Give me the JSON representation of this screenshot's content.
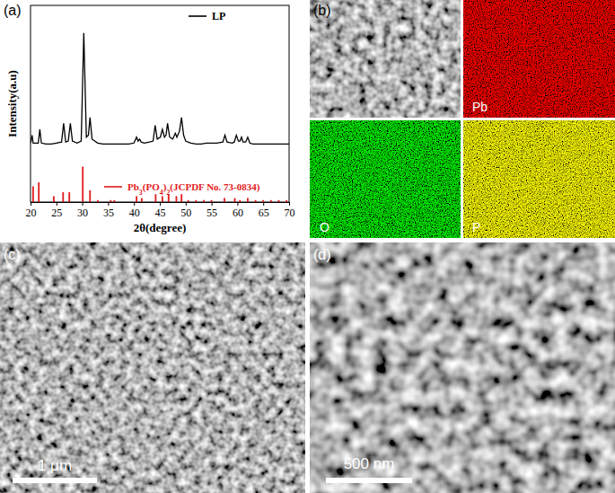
{
  "chart_data": {
    "type": "line",
    "x_label": "2θ(degree)",
    "y_label": "Intensity(a.u)",
    "xlim": [
      20,
      70
    ],
    "xticks": [
      20,
      25,
      30,
      35,
      40,
      45,
      50,
      55,
      60,
      65,
      70
    ],
    "ylim": [
      0,
      100
    ],
    "tick_labels": "x",
    "legend": "right",
    "series": [
      {
        "name": "LP",
        "color": "#000000",
        "type": "line",
        "x": [
          20,
          20.1,
          20.3,
          20.5,
          21.5,
          21.8,
          22.1,
          23,
          24,
          25,
          26,
          26.4,
          26.8,
          27.3,
          27.7,
          28.1,
          29,
          29.8,
          30.3,
          30.8,
          31.2,
          31.5,
          31.9,
          33,
          34,
          35,
          36,
          37,
          38,
          39,
          40,
          40.5,
          40.8,
          41.1,
          41.4,
          42,
          43,
          43.7,
          44.1,
          44.5,
          45.1,
          45.5,
          45.9,
          46.2,
          46.5,
          46.9,
          47.5,
          48,
          48.3,
          48.8,
          49.2,
          49.6,
          50,
          51,
          52,
          53,
          54,
          55,
          56,
          57.2,
          57.6,
          58,
          59,
          59.4,
          59.8,
          60.2,
          60.5,
          60.8,
          61.1,
          61.6,
          62,
          62.4,
          63,
          64,
          65,
          66,
          67,
          68,
          69,
          70
        ],
        "values": [
          30,
          31,
          34,
          30,
          30,
          37,
          30,
          29.5,
          29.5,
          30,
          30.5,
          40,
          30.5,
          31,
          40,
          31,
          30,
          31,
          86,
          33,
          34,
          43,
          32,
          30,
          29.5,
          29.5,
          29.5,
          29.5,
          29.5,
          29.5,
          30,
          33,
          31,
          32,
          30.5,
          30,
          30.5,
          31,
          39,
          32,
          33,
          37,
          33,
          34,
          40,
          33,
          32,
          35,
          33,
          36,
          43,
          34,
          31,
          30,
          29.5,
          29.5,
          30,
          30,
          30,
          30.5,
          34,
          30.5,
          30,
          30.5,
          34,
          31,
          31,
          33,
          30.5,
          30.5,
          33,
          30,
          29.5,
          29.5,
          29.5,
          29.5,
          29.5,
          29.5,
          29.5,
          29.5
        ]
      },
      {
        "name": "Pb3(PO4)2(JCPDF No. 73-0834)",
        "color": "#e31a1c",
        "type": "bar",
        "x": [
          20.5,
          21.6,
          24.5,
          26.3,
          27.5,
          30.1,
          31.5,
          33,
          35.5,
          36.2,
          40.5,
          41.5,
          44.2,
          45.5,
          46.7,
          48.2,
          49.2,
          50.5,
          52,
          53.5,
          55,
          57.5,
          59.5,
          60.5,
          62,
          63.5,
          65,
          66.5,
          68,
          69.5
        ],
        "values": [
          8,
          10,
          3,
          5,
          5,
          18,
          6,
          1,
          1,
          1,
          3,
          2,
          4,
          3,
          4,
          3,
          4,
          1,
          1,
          1,
          1,
          2,
          2,
          1,
          2,
          1,
          1,
          1,
          1,
          1
        ]
      }
    ]
  },
  "panel_labels": [
    "(a)",
    "(b)",
    "(c)",
    "(d)"
  ],
  "eds_maps": {
    "elements": [
      "Pb",
      "O",
      "P"
    ]
  },
  "sem_images": [
    {
      "scale_bar": "1 μm"
    },
    {
      "scale_bar": "500 nm"
    }
  ]
}
